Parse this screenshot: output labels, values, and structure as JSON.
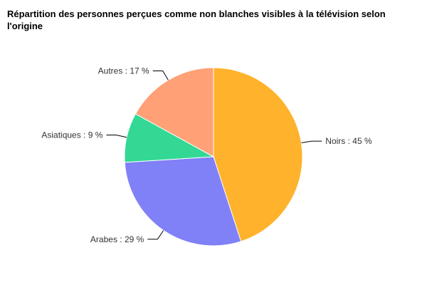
{
  "chart_data": {
    "type": "pie",
    "title": "Répartition des personnes perçues comme non blanches visibles à la télévision selon l'origine",
    "slices": [
      {
        "label": "Noirs : 45 %",
        "value": 45,
        "color": "#FFB22B"
      },
      {
        "label": "Arabes : 29 %",
        "value": 29,
        "color": "#8080F7"
      },
      {
        "label": "Asiatiques : 9 %",
        "value": 9,
        "color": "#33D895"
      },
      {
        "label": "Autres : 17 %",
        "value": 17,
        "color": "#FFA076"
      }
    ],
    "start_angle": "top",
    "direction": "clockwise",
    "legend": "none"
  }
}
